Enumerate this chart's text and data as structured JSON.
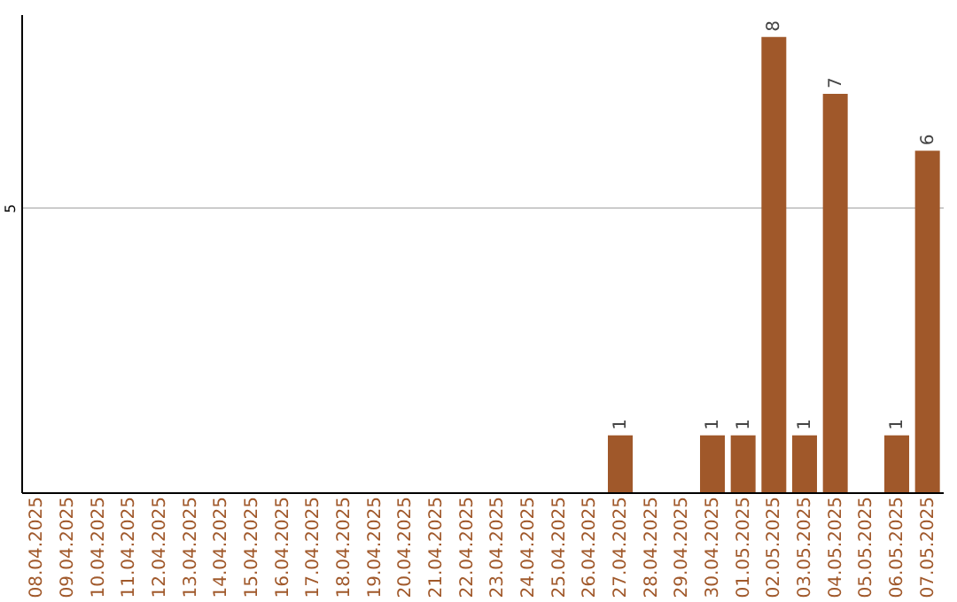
{
  "chart_data": {
    "type": "bar",
    "categories": [
      "08.04.2025",
      "09.04.2025",
      "10.04.2025",
      "11.04.2025",
      "12.04.2025",
      "13.04.2025",
      "14.04.2025",
      "15.04.2025",
      "16.04.2025",
      "17.04.2025",
      "18.04.2025",
      "19.04.2025",
      "20.04.2025",
      "21.04.2025",
      "22.04.2025",
      "23.04.2025",
      "24.04.2025",
      "25.04.2025",
      "26.04.2025",
      "27.04.2025",
      "28.04.2025",
      "29.04.2025",
      "30.04.2025",
      "01.05.2025",
      "02.05.2025",
      "03.05.2025",
      "04.05.2025",
      "05.05.2025",
      "06.05.2025",
      "07.05.2025"
    ],
    "values": [
      null,
      null,
      null,
      null,
      null,
      null,
      null,
      null,
      null,
      null,
      null,
      null,
      null,
      null,
      null,
      null,
      null,
      null,
      null,
      1,
      null,
      null,
      1,
      1,
      8,
      1,
      7,
      null,
      1,
      6
    ],
    "data_labels": true,
    "color": "#a0582a",
    "ylim": [
      0,
      8.4
    ],
    "yticks": [
      {
        "value": 0,
        "label": null
      },
      5
    ],
    "grid": "y"
  }
}
